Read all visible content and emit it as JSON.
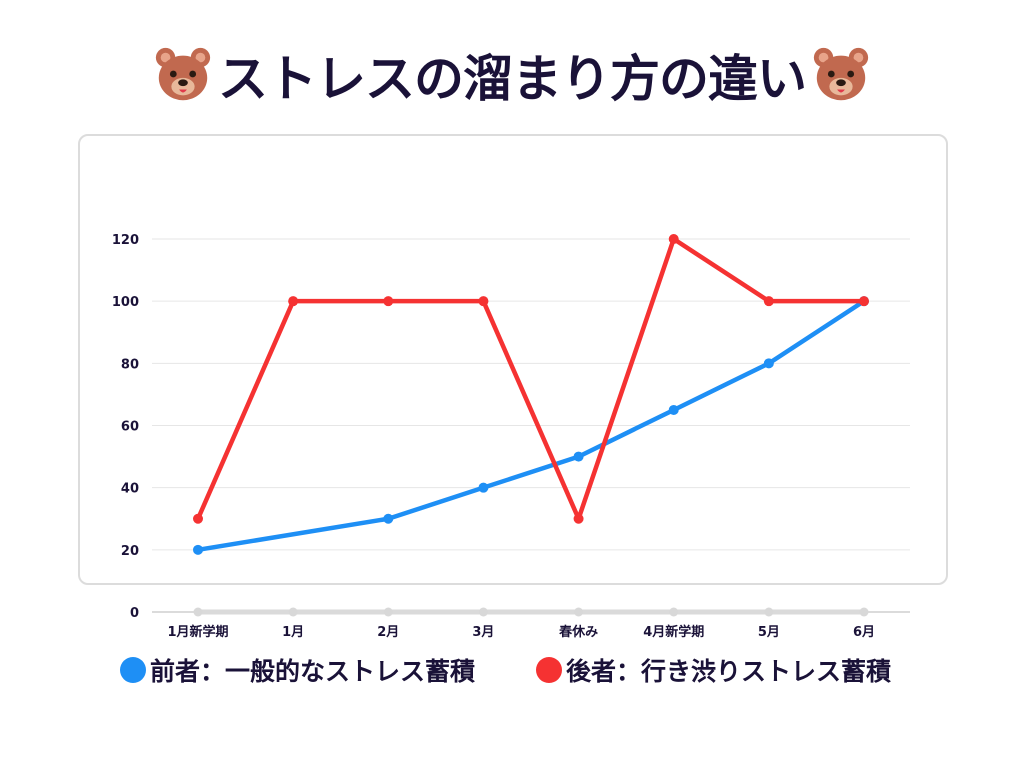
{
  "title": "ストレスの溜まり方の違い",
  "icons": {
    "left": "bear-face-icon",
    "right": "bear-face-icon"
  },
  "colors": {
    "series_a": "#1e8ff5",
    "series_b": "#f53232",
    "text": "#1a1238",
    "grid": "#e6e6e6"
  },
  "chart_data": {
    "type": "line",
    "categories": [
      "1月新学期",
      "1月",
      "2月",
      "3月",
      "春休み",
      "4月新学期",
      "5月",
      "6月"
    ],
    "yticks": [
      0,
      20,
      40,
      60,
      80,
      100,
      120
    ],
    "ylim": [
      0,
      120
    ],
    "grid": true,
    "legend_position": "bottom",
    "series": [
      {
        "name": "前者：一般的なストレス蓄積",
        "color": "#1e8ff5",
        "values": [
          20,
          null,
          30,
          40,
          50,
          65,
          80,
          100
        ]
      },
      {
        "name": "後者：行き渋りストレス蓄積",
        "color": "#f53232",
        "values": [
          30,
          100,
          100,
          100,
          30,
          120,
          100,
          100
        ]
      }
    ]
  }
}
